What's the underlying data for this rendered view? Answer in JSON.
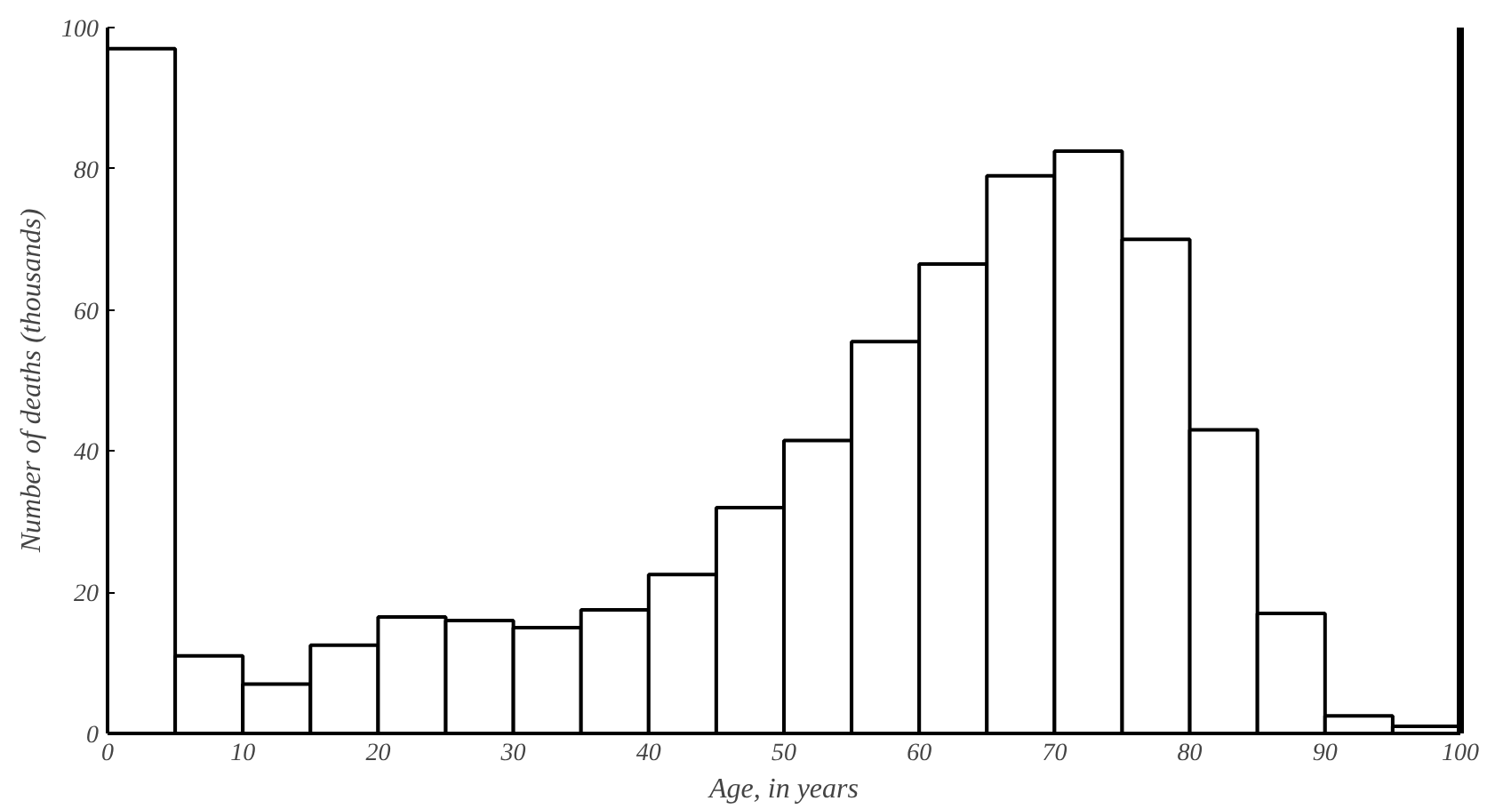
{
  "chart_data": {
    "type": "histogram",
    "xlabel": "Age, in years",
    "ylabel": "Number of deaths (thousands)",
    "bins": [
      0,
      5,
      10,
      15,
      20,
      25,
      30,
      35,
      40,
      45,
      50,
      55,
      60,
      65,
      70,
      75,
      80,
      85,
      90,
      95,
      100
    ],
    "values": [
      97,
      11,
      7,
      12.5,
      16.5,
      16,
      15,
      17.5,
      22.5,
      32,
      41.5,
      55.5,
      66.5,
      79,
      82.5,
      70,
      43,
      17,
      2.5,
      1
    ],
    "color": "#ffffff",
    "xlim": [
      0,
      100
    ],
    "ylim": [
      0,
      100
    ],
    "xticks": [
      0,
      10,
      20,
      30,
      40,
      50,
      60,
      70,
      80,
      90,
      100
    ],
    "yticks": [
      0,
      20,
      40,
      60,
      80,
      100
    ],
    "grid": false
  }
}
